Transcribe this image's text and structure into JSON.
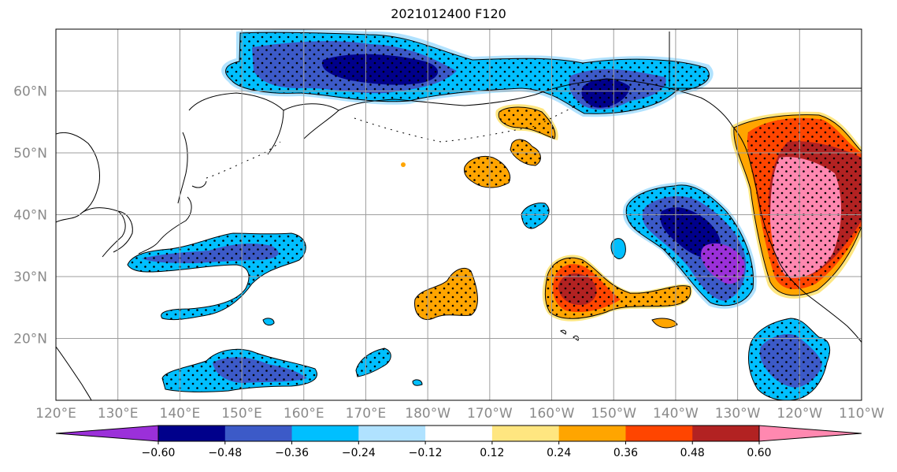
{
  "title": "2021012400 F120",
  "map": {
    "lon_range_deg_east": [
      120,
      250
    ],
    "lat_range": [
      10,
      70
    ],
    "lon_ticks": [
      "120°E",
      "130°E",
      "140°E",
      "150°E",
      "160°E",
      "170°E",
      "180°W",
      "170°W",
      "160°W",
      "150°W",
      "140°W",
      "130°W",
      "120°W",
      "110°W"
    ],
    "lat_ticks": [
      "20°N",
      "30°N",
      "40°N",
      "50°N",
      "60°N"
    ],
    "lon_tick_values": [
      120,
      130,
      140,
      150,
      160,
      170,
      180,
      190,
      200,
      210,
      220,
      230,
      240,
      250
    ],
    "lat_tick_values": [
      20,
      30,
      40,
      50,
      60
    ],
    "gridlines": true,
    "stippling": "dots mark significant regions"
  },
  "colorbar": {
    "extend": "both",
    "levels": [
      -0.6,
      -0.48,
      -0.36,
      -0.24,
      -0.12,
      0.12,
      0.24,
      0.36,
      0.48,
      0.6
    ],
    "labels": [
      "−0.60",
      "−0.48",
      "−0.36",
      "−0.24",
      "−0.12",
      "0.12",
      "0.24",
      "0.36",
      "0.48",
      "0.60"
    ],
    "colors": [
      "#9b30d9",
      "#00008b",
      "#3c5ac8",
      "#00bfff",
      "#b0e2ff",
      "#ffffff",
      "#ffe680",
      "#ffa500",
      "#ff4500",
      "#b22222",
      "#ff88b0"
    ]
  },
  "anomalies": [
    {
      "name": "arctic-neg-band",
      "sign": "neg"
    },
    {
      "name": "gulf-alaska-neg",
      "sign": "neg"
    },
    {
      "name": "japan-east-neg-band",
      "sign": "neg"
    },
    {
      "name": "subtropical-neg",
      "sign": "neg"
    },
    {
      "name": "northeast-pacific-neg",
      "sign": "neg"
    },
    {
      "name": "west-coast-pos",
      "sign": "pos"
    },
    {
      "name": "central-pacific-pos",
      "sign": "pos"
    },
    {
      "name": "hawaii-pos",
      "sign": "pos"
    },
    {
      "name": "baja-neg",
      "sign": "neg"
    }
  ]
}
